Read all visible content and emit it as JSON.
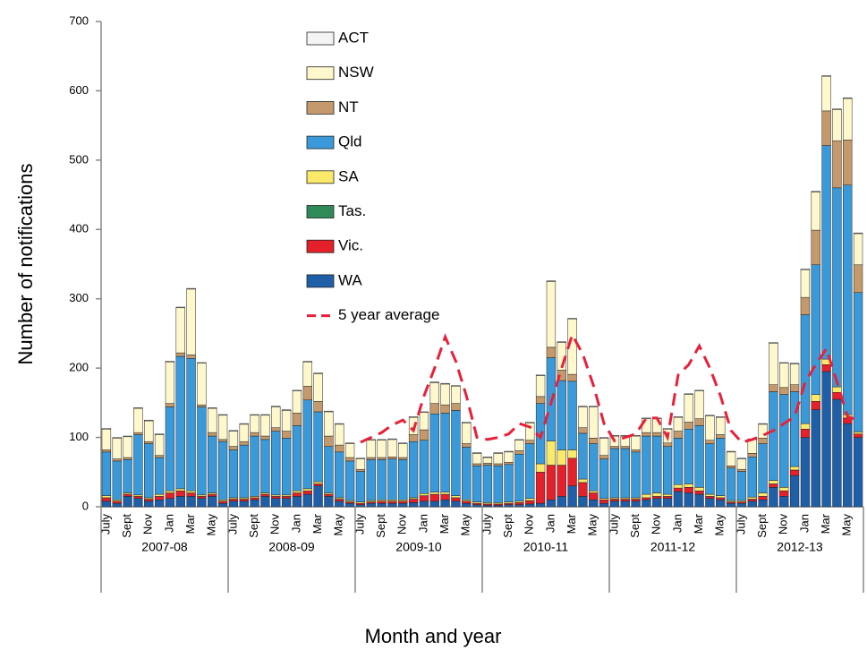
{
  "chart_data": {
    "type": "stacked_bar",
    "x_label": "Month and year",
    "y_label": "Number of notifications",
    "ylim": [
      0,
      700
    ],
    "yticks": [
      0,
      100,
      200,
      300,
      400,
      500,
      600,
      700
    ],
    "groups": [
      "2007-08",
      "2008-09",
      "2009-10",
      "2010-11",
      "2011-12",
      "2012-13"
    ],
    "categories": [
      "July",
      null,
      "Sept",
      null,
      "Nov",
      null,
      "Jan",
      null,
      "Mar",
      null,
      "May",
      null,
      "July",
      null,
      "Sept",
      null,
      "Nov",
      null,
      "Jan",
      null,
      "Mar",
      null,
      "May",
      null,
      "July",
      null,
      "Sept",
      null,
      "Nov",
      null,
      "Jan",
      null,
      "Mar",
      null,
      "May",
      null,
      "July",
      null,
      "Sept",
      null,
      "Nov",
      null,
      "Jan",
      null,
      "Mar",
      null,
      "May",
      null,
      "July",
      null,
      "Sept",
      null,
      "Nov",
      null,
      "Jan",
      null,
      "Mar",
      null,
      "May",
      null,
      "July",
      null,
      "Sept",
      null,
      "Nov",
      null,
      "Jan",
      null,
      "Mar",
      null,
      "May",
      null
    ],
    "series": [
      {
        "name": "ACT",
        "color": "#f4f4f4",
        "values": [
          1,
          1,
          1,
          1,
          1,
          1,
          1,
          1,
          1,
          1,
          1,
          1,
          1,
          1,
          1,
          1,
          1,
          1,
          1,
          1,
          1,
          1,
          1,
          1,
          1,
          1,
          1,
          1,
          1,
          1,
          1,
          1,
          1,
          1,
          1,
          1,
          1,
          1,
          1,
          1,
          1,
          1,
          1,
          1,
          1,
          1,
          1,
          1,
          1,
          1,
          1,
          1,
          1,
          1,
          1,
          1,
          1,
          1,
          1,
          1,
          1,
          1,
          1,
          1,
          1,
          1,
          1,
          1,
          1,
          1,
          1,
          1
        ]
      },
      {
        "name": "NSW",
        "color": "#fff8cc",
        "values": [
          30,
          30,
          30,
          35,
          30,
          30,
          60,
          65,
          95,
          60,
          35,
          35,
          22,
          25,
          25,
          30,
          30,
          30,
          32,
          35,
          40,
          35,
          30,
          20,
          15,
          25,
          25,
          25,
          20,
          25,
          25,
          30,
          30,
          25,
          30,
          15,
          8,
          15,
          15,
          15,
          25,
          30,
          95,
          40,
          80,
          30,
          45,
          25,
          15,
          15,
          20,
          20,
          20,
          20,
          20,
          40,
          40,
          35,
          25,
          20,
          15,
          20,
          20,
          60,
          35,
          30,
          40,
          55,
          50,
          45,
          60,
          45
        ]
      },
      {
        "name": "NT",
        "color": "#c49a6c",
        "values": [
          3,
          3,
          3,
          3,
          3,
          3,
          5,
          5,
          5,
          3,
          5,
          3,
          5,
          5,
          5,
          5,
          5,
          10,
          18,
          20,
          15,
          15,
          10,
          5,
          3,
          3,
          3,
          3,
          3,
          10,
          15,
          15,
          12,
          10,
          5,
          3,
          3,
          3,
          3,
          5,
          5,
          10,
          15,
          15,
          10,
          8,
          8,
          5,
          3,
          3,
          3,
          5,
          5,
          5,
          10,
          10,
          10,
          5,
          5,
          3,
          3,
          5,
          8,
          10,
          10,
          10,
          25,
          50,
          50,
          68,
          65,
          40
        ]
      },
      {
        "name": "Qld",
        "color": "#3a9ad9",
        "values": [
          63,
          56,
          48,
          87,
          78,
          53,
          121,
          191,
          191,
          127,
          82,
          84,
          69,
          76,
          87,
          77,
          92,
          82,
          94,
          128,
          101,
          67,
          66,
          57,
          44,
          59,
          58,
          59,
          58,
          81,
          77,
          113,
          114,
          123,
          76,
          52,
          54,
          53,
          54,
          68,
          79,
          87,
          120,
          100,
          99,
          66,
          68,
          57,
          71,
          71,
          66,
          84,
          82,
          69,
          67,
          79,
          89,
          73,
          83,
          47,
          42,
          58,
          71,
          128,
          134,
          108,
          157,
          187,
          308,
          287,
          331,
          201
        ]
      },
      {
        "name": "SA",
        "color": "#fbe96a",
        "values": [
          3,
          2,
          2,
          2,
          2,
          3,
          3,
          3,
          3,
          2,
          2,
          2,
          2,
          2,
          2,
          2,
          2,
          2,
          3,
          3,
          3,
          2,
          2,
          2,
          2,
          2,
          2,
          2,
          2,
          2,
          3,
          3,
          3,
          3,
          2,
          2,
          2,
          2,
          2,
          2,
          3,
          12,
          35,
          22,
          12,
          5,
          3,
          2,
          2,
          2,
          2,
          5,
          5,
          3,
          5,
          5,
          5,
          3,
          3,
          2,
          2,
          3,
          5,
          5,
          5,
          5,
          8,
          10,
          8,
          8,
          5,
          3
        ]
      },
      {
        "name": "Tas.",
        "color": "#2e8b57",
        "values": [
          0,
          0,
          0,
          0,
          0,
          0,
          0,
          0,
          0,
          0,
          0,
          0,
          0,
          0,
          0,
          0,
          0,
          0,
          0,
          0,
          0,
          0,
          0,
          0,
          0,
          0,
          0,
          0,
          0,
          0,
          0,
          0,
          0,
          0,
          0,
          0,
          0,
          0,
          0,
          0,
          0,
          0,
          0,
          0,
          0,
          0,
          0,
          0,
          0,
          0,
          0,
          0,
          0,
          0,
          0,
          0,
          0,
          0,
          0,
          0,
          0,
          0,
          0,
          0,
          0,
          0,
          0,
          0,
          0,
          0,
          0,
          0
        ]
      },
      {
        "name": "Vic.",
        "color": "#e4202a",
        "values": [
          5,
          3,
          3,
          3,
          3,
          5,
          8,
          8,
          5,
          3,
          3,
          3,
          3,
          3,
          3,
          3,
          3,
          3,
          5,
          5,
          3,
          3,
          3,
          2,
          2,
          2,
          3,
          3,
          3,
          5,
          8,
          10,
          8,
          5,
          3,
          2,
          2,
          2,
          2,
          3,
          5,
          45,
          50,
          45,
          40,
          20,
          10,
          5,
          3,
          3,
          3,
          3,
          3,
          3,
          5,
          8,
          5,
          3,
          3,
          2,
          2,
          3,
          5,
          5,
          8,
          8,
          12,
          12,
          10,
          10,
          8,
          5
        ]
      },
      {
        "name": "WA",
        "color": "#1f5fa8",
        "values": [
          8,
          5,
          15,
          12,
          8,
          10,
          12,
          15,
          15,
          12,
          15,
          5,
          8,
          8,
          10,
          15,
          12,
          12,
          15,
          18,
          30,
          15,
          8,
          5,
          3,
          5,
          5,
          5,
          5,
          6,
          8,
          8,
          10,
          8,
          5,
          3,
          2,
          2,
          3,
          3,
          4,
          5,
          10,
          15,
          30,
          15,
          10,
          5,
          8,
          8,
          8,
          10,
          12,
          12,
          22,
          20,
          18,
          12,
          10,
          5,
          5,
          8,
          10,
          28,
          15,
          45,
          100,
          140,
          195,
          155,
          120,
          100
        ]
      },
      {
        "name": "5 year average",
        "type": "line",
        "color": "#e8203a",
        "values": [
          null,
          null,
          null,
          null,
          null,
          null,
          null,
          null,
          null,
          null,
          null,
          null,
          null,
          null,
          null,
          null,
          null,
          null,
          null,
          null,
          null,
          null,
          null,
          null,
          93,
          100,
          107,
          118,
          125,
          110,
          160,
          200,
          245,
          210,
          160,
          100,
          97,
          100,
          105,
          120,
          115,
          100,
          150,
          200,
          248,
          220,
          175,
          120,
          95,
          100,
          105,
          128,
          128,
          100,
          190,
          205,
          232,
          200,
          160,
          110,
          93,
          97,
          103,
          110,
          120,
          130,
          180,
          205,
          228,
          180,
          130,
          125
        ]
      }
    ]
  }
}
